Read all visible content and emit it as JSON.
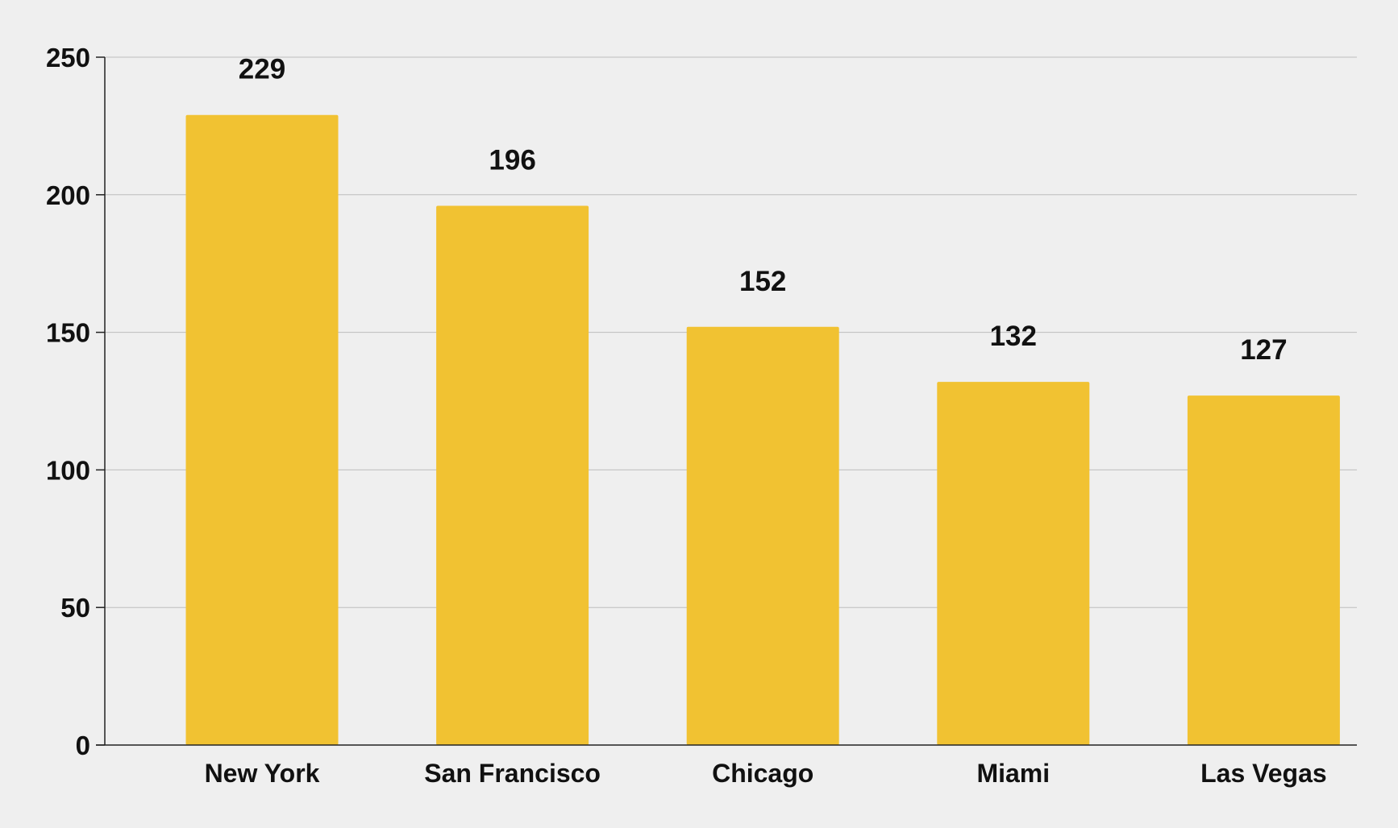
{
  "chart_data": {
    "type": "bar",
    "title": "",
    "xlabel": "",
    "ylabel": "",
    "categories": [
      "New York",
      "San Francisco",
      "Chicago",
      "Miami",
      "Las Vegas"
    ],
    "values": [
      229,
      196,
      152,
      132,
      127
    ],
    "data_labels": [
      "229",
      "196",
      "152",
      "132",
      "127"
    ],
    "ylim": [
      0,
      250
    ],
    "yticks": [
      0,
      50,
      100,
      150,
      200,
      250
    ],
    "ytick_labels": [
      "0",
      "50",
      "100",
      "150",
      "200",
      "250"
    ],
    "grid": true,
    "legend": "none",
    "bar_color": "#F1C232",
    "background_color": "#EFEFEF",
    "grid_color": "#BDBDBD",
    "axis_color": "#222222",
    "label_color": "#111111"
  }
}
